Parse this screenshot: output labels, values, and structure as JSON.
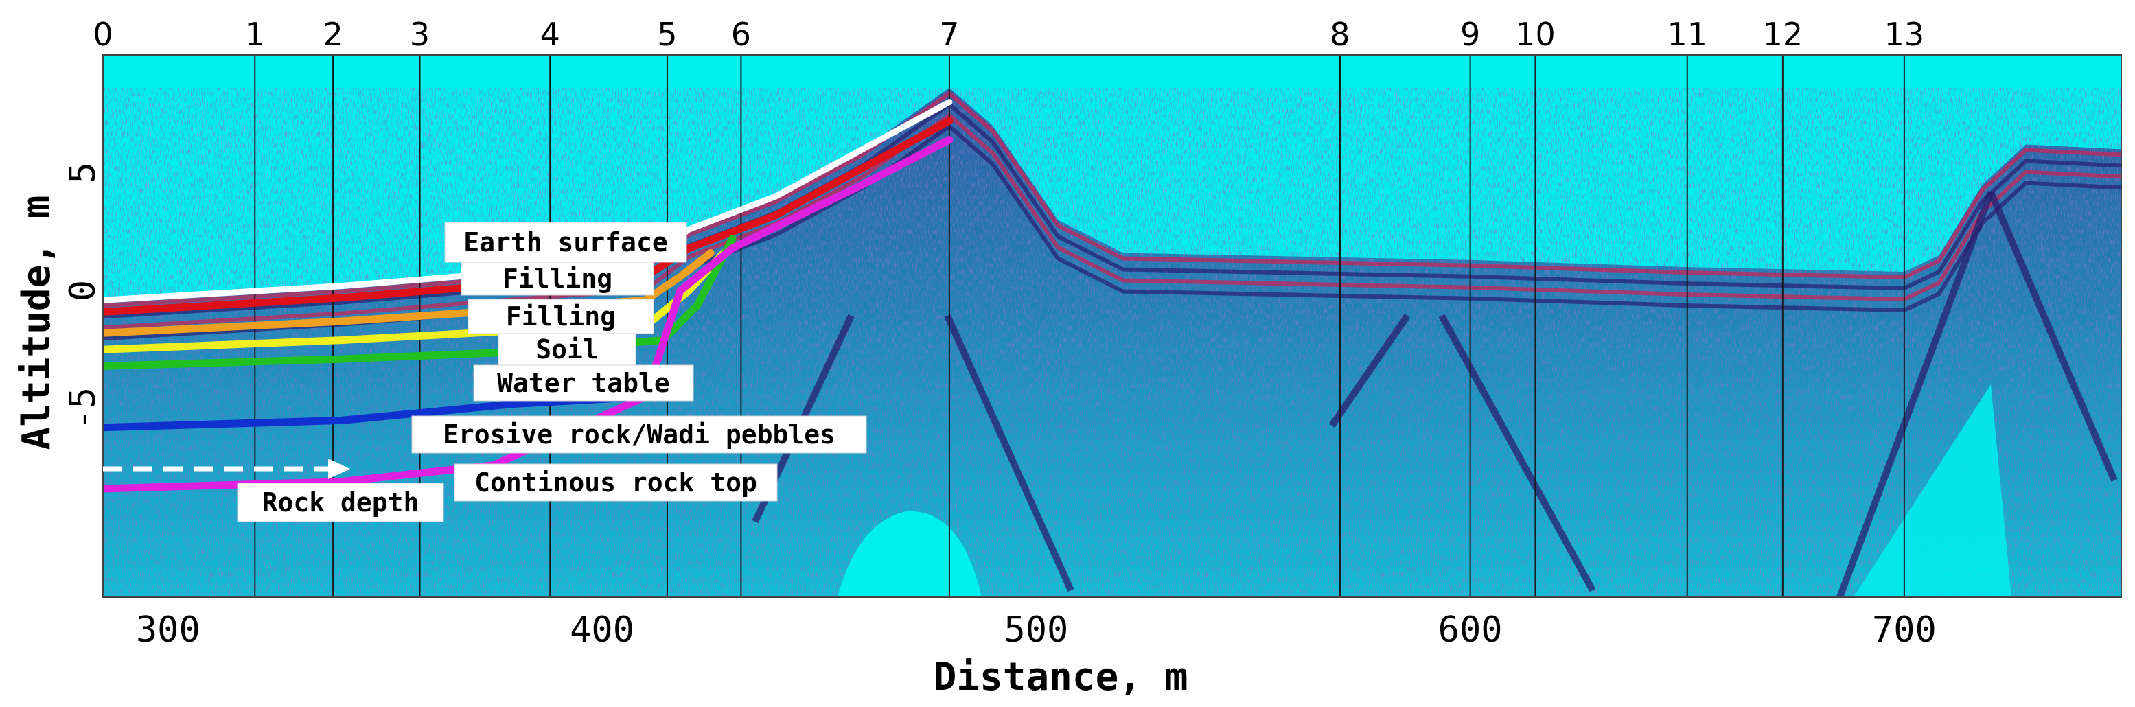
{
  "figure": {
    "ylabel": "Altitude, m",
    "xlabel": "Distance, m",
    "colors": {
      "background": "#00f0f0",
      "radar_texture": "#3a2e8c",
      "radar_bright": "#d02050",
      "earth_surface": "#ffffff",
      "filling_1": "#e01018",
      "filling_2": "#f0a020",
      "soil": "#f0f020",
      "water_table": "#20c020",
      "erosive_rock": "#1030d0",
      "rock_top": "#e020e0"
    }
  },
  "chart_data": {
    "type": "line",
    "x_tick_labels": [
      "300",
      "400",
      "500",
      "600",
      "700"
    ],
    "y_tick_labels": [
      "5",
      "0",
      "-5"
    ],
    "x_range": [
      285,
      750
    ],
    "y_range": [
      -13,
      10
    ],
    "station_labels": [
      "0",
      "1",
      "2",
      "3",
      "4",
      "5",
      "6",
      "7",
      "8",
      "9",
      "10",
      "11",
      "12",
      "13"
    ],
    "station_x": [
      285,
      320,
      338,
      358,
      388,
      415,
      432,
      480,
      570,
      600,
      615,
      650,
      672,
      700
    ],
    "layers": [
      {
        "name": "Earth surface",
        "x": [
          285,
          340,
          380,
          410,
          420,
          440,
          460,
          480
        ],
        "y": [
          -0.4,
          0.2,
          0.8,
          1.2,
          2.6,
          4.0,
          6.0,
          8.0
        ]
      },
      {
        "name": "Filling",
        "x": [
          285,
          340,
          380,
          410,
          420,
          440,
          460,
          480
        ],
        "y": [
          -0.9,
          -0.3,
          0.3,
          0.6,
          1.8,
          3.2,
          5.2,
          7.2
        ]
      },
      {
        "name": "Filling",
        "x": [
          285,
          340,
          380,
          410,
          418,
          425
        ],
        "y": [
          -1.8,
          -1.3,
          -0.8,
          -0.4,
          0.6,
          1.6
        ]
      },
      {
        "name": "Soil",
        "x": [
          285,
          340,
          380,
          412,
          420,
          428
        ],
        "y": [
          -2.5,
          -2.1,
          -1.7,
          -1.2,
          0.0,
          1.6
        ]
      },
      {
        "name": "Water table",
        "x": [
          285,
          340,
          380,
          414,
          422,
          430
        ],
        "y": [
          -3.2,
          -2.9,
          -2.6,
          -2.1,
          -0.6,
          2.2
        ]
      },
      {
        "name": "Erosive rock/Wadi pebbles",
        "x": [
          285,
          340,
          380,
          410
        ],
        "y": [
          -5.8,
          -5.5,
          -4.8,
          -4.5
        ]
      },
      {
        "name": "Continous rock top",
        "x": [
          285,
          340,
          375,
          410,
          418,
          430,
          460,
          480
        ],
        "y": [
          -8.4,
          -8.1,
          -7.4,
          -4.5,
          0.0,
          1.8,
          4.5,
          6.4
        ]
      }
    ],
    "annotations": [
      {
        "text": "Earth surface"
      },
      {
        "text": "Filling"
      },
      {
        "text": "Filling"
      },
      {
        "text": "Soil"
      },
      {
        "text": "Water table"
      },
      {
        "text": "Erosive rock/Wadi pebbles"
      },
      {
        "text": "Continous rock top"
      },
      {
        "text": "Rock depth"
      }
    ]
  }
}
